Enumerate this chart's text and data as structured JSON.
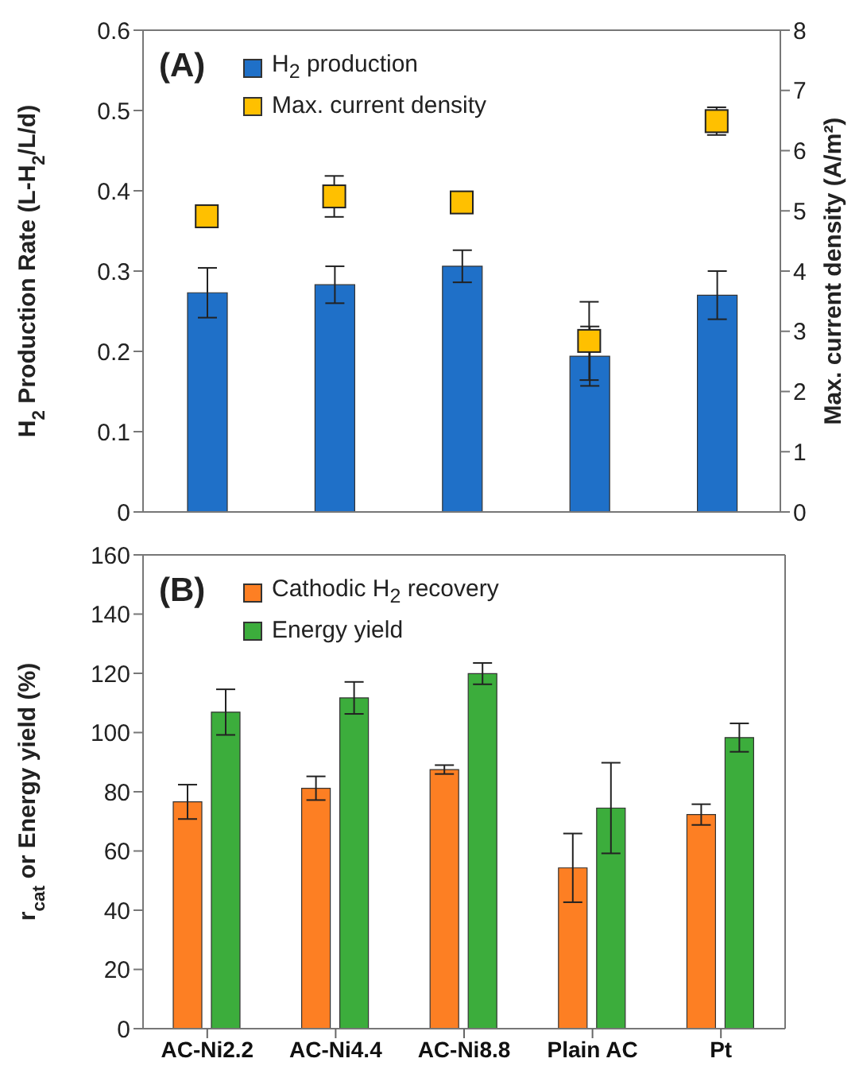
{
  "chart_data": [
    {
      "type": "bar",
      "categories": [
        null,
        null,
        null,
        null,
        null
      ],
      "ylabel": "H$_{2}$ Production Rate (L-H$_{2}$/L/d)",
      "y2label": "Max. current density (A/m²)",
      "ylim": [
        0,
        0.6
      ],
      "yticks": [
        0,
        0.1,
        0.2,
        0.3,
        0.4,
        0.5,
        0.6
      ],
      "y2lim": [
        0,
        8
      ],
      "y2ticks": [
        0,
        1,
        2,
        3,
        4,
        5,
        6,
        7,
        8
      ],
      "tick_labels": "y",
      "legend": "top left",
      "grid": false,
      "marker": "square",
      "annotations": [
        "(A)"
      ],
      "series": [
        {
          "name": "H$_{2}$ production",
          "color": "#1f70c8",
          "values": [
            0.273,
            0.283,
            0.306,
            0.194,
            0.27
          ],
          "errors": [
            0.031,
            0.023,
            0.02,
            0.037,
            0.03
          ]
        },
        {
          "name": "Max. current density",
          "type": "scatter",
          "axis": "y2",
          "color": "#ffc000",
          "values": [
            4.91,
            5.24,
            5.14,
            2.84,
            6.49
          ],
          "errors": [
            null,
            0.34,
            null,
            0.65,
            0.23
          ]
        }
      ]
    },
    {
      "type": "bar",
      "categories": [
        "AC-Ni2.2",
        "AC-Ni4.4",
        "AC-Ni8.8",
        "Plain AC",
        "Pt"
      ],
      "ylabel": "r$_{cat}$ or Energy yield (%)",
      "ylim": [
        0,
        160
      ],
      "yticks": [
        0,
        20,
        40,
        60,
        80,
        100,
        120,
        140,
        160
      ],
      "legend": "top left",
      "grid": false,
      "annotations": [
        "(B)"
      ],
      "series": [
        {
          "name": "Cathodic H$_{2}$ recovery",
          "color": "#fd7f23",
          "values": [
            76.6,
            81.2,
            87.5,
            54.3,
            72.3
          ],
          "errors": [
            5.8,
            4,
            1.5,
            11.6,
            3.5
          ]
        },
        {
          "name": "Energy yield",
          "color": "#3cad3c",
          "values": [
            106.9,
            111.7,
            119.9,
            74.5,
            98.3
          ],
          "errors": [
            7.7,
            5.4,
            3.6,
            15.3,
            4.8
          ]
        }
      ]
    }
  ]
}
